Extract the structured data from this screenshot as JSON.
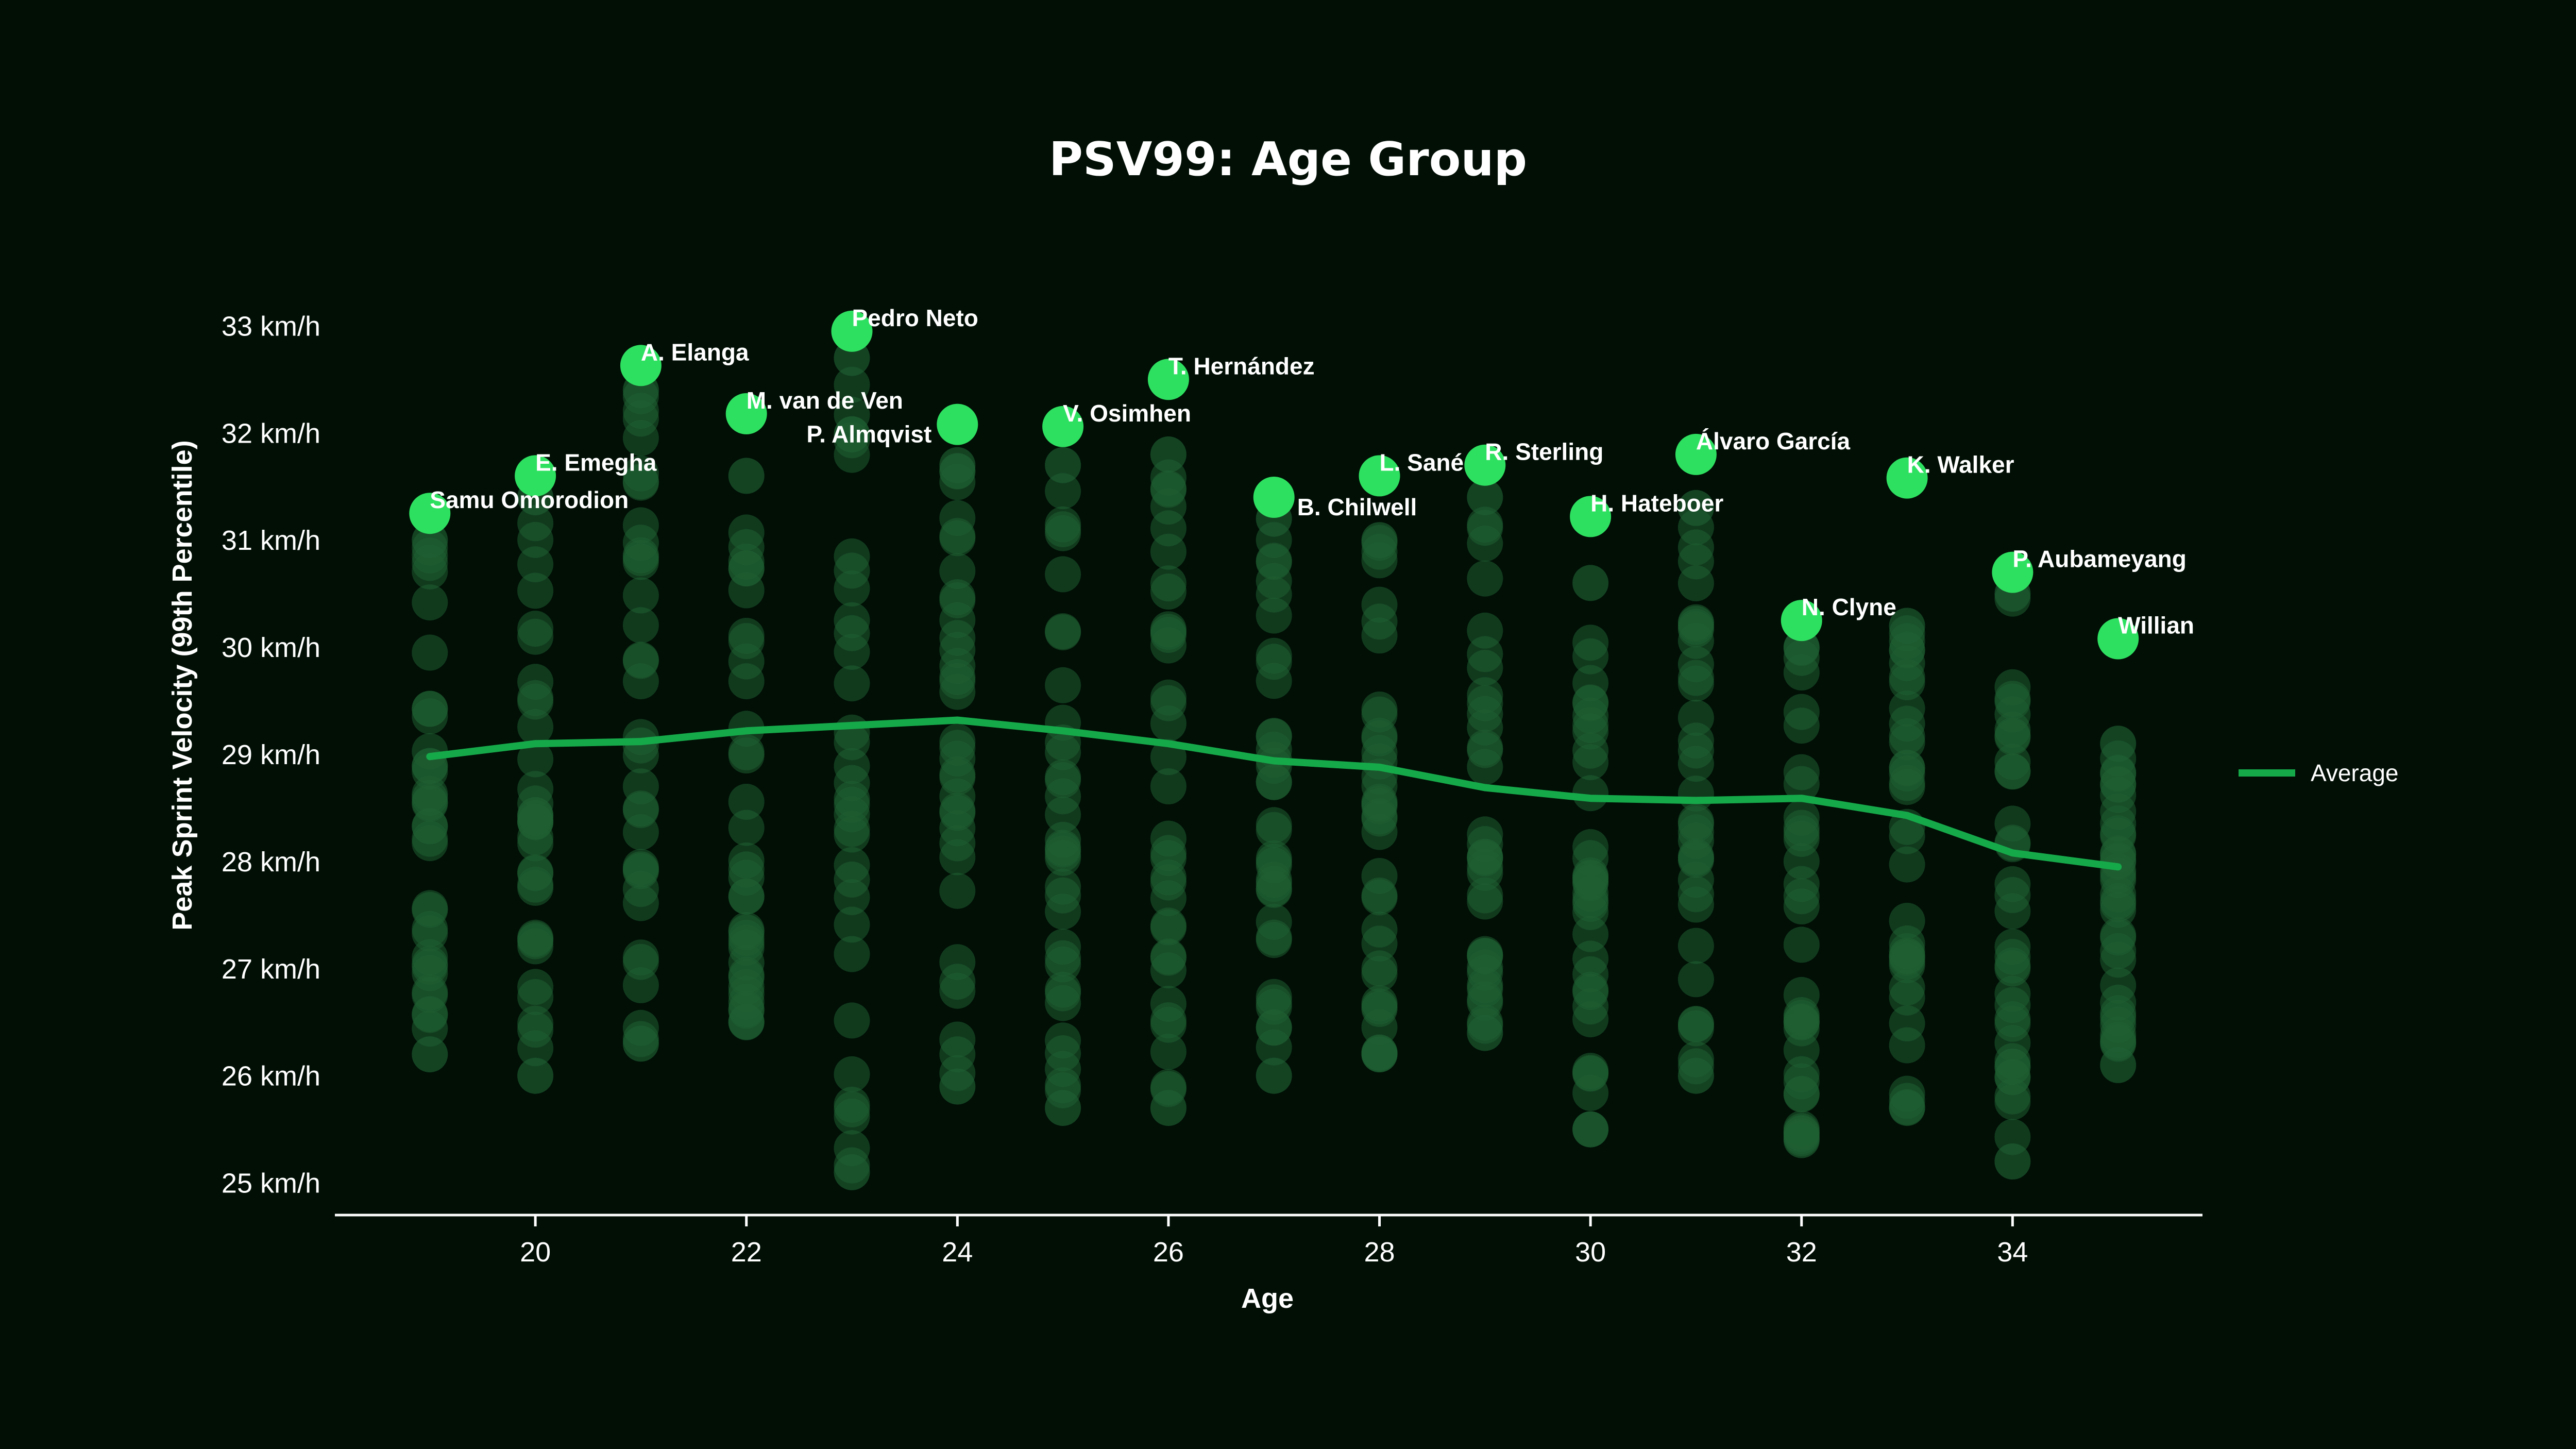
{
  "chart_data": {
    "type": "scatter",
    "title": "PSV99: Age Group",
    "xlabel": "Age",
    "ylabel": "Peak Sprint Velocity (99th Percentile)",
    "xlim": [
      18.1,
      35.8
    ],
    "ylim": [
      24.7,
      33.3
    ],
    "x_ticks": [
      20,
      22,
      24,
      26,
      28,
      30,
      32,
      34
    ],
    "y_ticks": [
      25,
      26,
      27,
      28,
      29,
      30,
      31,
      32,
      33
    ],
    "y_tick_labels": [
      "25 km/h",
      "26 km/h",
      "27 km/h",
      "28 km/h",
      "29 km/h",
      "30 km/h",
      "31 km/h",
      "32 km/h",
      "33 km/h"
    ],
    "grid": false,
    "legend_position": "right",
    "colors": {
      "highlight": "#2ee060",
      "average_line": "#16a94a",
      "background_points": "#1f5f32",
      "background": "#010f05"
    },
    "series": [
      {
        "name": "Average",
        "type": "line",
        "x": [
          19,
          20,
          21,
          22,
          23,
          24,
          25,
          26,
          27,
          28,
          29,
          30,
          31,
          32,
          33,
          34,
          35
        ],
        "y": [
          28.98,
          29.1,
          29.12,
          29.22,
          29.27,
          29.32,
          29.22,
          29.1,
          28.94,
          28.88,
          28.69,
          28.59,
          28.57,
          28.59,
          28.43,
          28.08,
          27.95
        ]
      }
    ],
    "highlighted": [
      {
        "name": "Samu Omorodion",
        "age": 19,
        "value": 31.25
      },
      {
        "name": "E. Emegha",
        "age": 20,
        "value": 31.6
      },
      {
        "name": "A. Elanga",
        "age": 21,
        "value": 32.63
      },
      {
        "name": "M. van de Ven",
        "age": 22,
        "value": 32.18
      },
      {
        "name": "Pedro Neto",
        "age": 23,
        "value": 32.95
      },
      {
        "name": "P. Almqvist",
        "age": 24,
        "value": 32.08
      },
      {
        "name": "V. Osimhen",
        "age": 25,
        "value": 32.06
      },
      {
        "name": "T. Hernández",
        "age": 26,
        "value": 32.5
      },
      {
        "name": "B. Chilwell",
        "age": 27,
        "value": 31.4
      },
      {
        "name": "L. Sané",
        "age": 28,
        "value": 31.6
      },
      {
        "name": "R. Sterling",
        "age": 29,
        "value": 31.7
      },
      {
        "name": "H. Hateboer",
        "age": 30,
        "value": 31.22
      },
      {
        "name": "Álvaro García",
        "age": 31,
        "value": 31.8
      },
      {
        "name": "N. Clyne",
        "age": 32,
        "value": 30.25
      },
      {
        "name": "K. Walker",
        "age": 33,
        "value": 31.58
      },
      {
        "name": "P. Aubameyang",
        "age": 34,
        "value": 30.7
      },
      {
        "name": "Willian",
        "age": 35,
        "value": 30.08
      }
    ],
    "distribution_ranges": [
      {
        "age": 19,
        "min": 26.2,
        "max": 31.0
      },
      {
        "age": 20,
        "min": 26.0,
        "max": 31.4
      },
      {
        "age": 21,
        "min": 26.3,
        "max": 32.4
      },
      {
        "age": 22,
        "min": 26.5,
        "max": 31.6
      },
      {
        "age": 23,
        "min": 25.1,
        "max": 32.7
      },
      {
        "age": 24,
        "min": 25.9,
        "max": 31.7
      },
      {
        "age": 25,
        "min": 25.7,
        "max": 31.7
      },
      {
        "age": 26,
        "min": 25.7,
        "max": 31.8
      },
      {
        "age": 27,
        "min": 26.0,
        "max": 31.2
      },
      {
        "age": 28,
        "min": 26.2,
        "max": 31.0
      },
      {
        "age": 29,
        "min": 26.4,
        "max": 31.4
      },
      {
        "age": 30,
        "min": 25.5,
        "max": 30.6
      },
      {
        "age": 31,
        "min": 26.0,
        "max": 31.3
      },
      {
        "age": 32,
        "min": 25.4,
        "max": 30.0
      },
      {
        "age": 33,
        "min": 25.7,
        "max": 30.2
      },
      {
        "age": 34,
        "min": 25.2,
        "max": 30.5
      },
      {
        "age": 35,
        "min": 26.1,
        "max": 29.1
      }
    ]
  }
}
